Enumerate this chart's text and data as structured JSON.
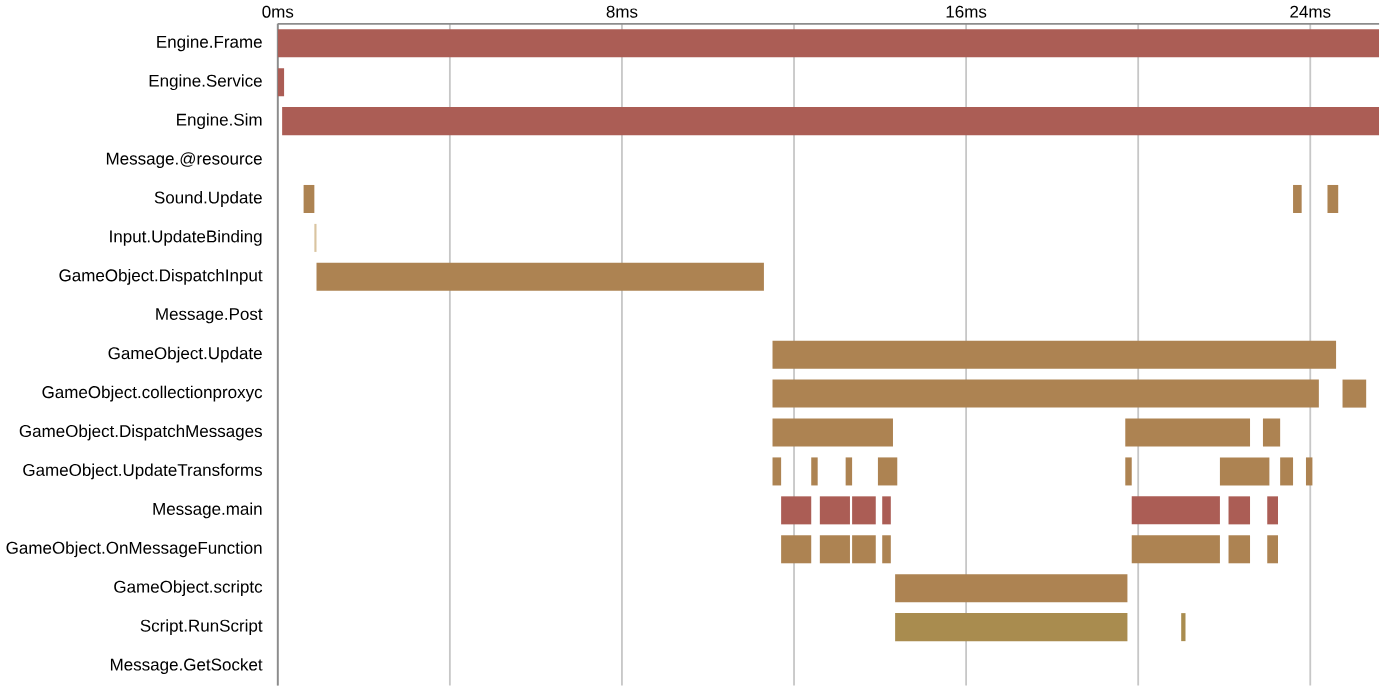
{
  "chart_data": {
    "type": "bar",
    "orientation": "horizontal",
    "grid": "x",
    "categories": [
      "Engine.Frame",
      "Engine.Service",
      "Engine.Sim",
      "Message.@resource",
      "Sound.Update",
      "Input.UpdateBinding",
      "GameObject.DispatchInput",
      "Message.Post",
      "GameObject.Update",
      "GameObject.collectionproxyc",
      "GameObject.DispatchMessages",
      "GameObject.UpdateTransforms",
      "Message.main",
      "GameObject.OnMessageFunction",
      "GameObject.scriptc",
      "Script.RunScript",
      "Message.GetSocket"
    ],
    "xlim": [
      0,
      25.6
    ],
    "xticks": [
      {
        "value": 0,
        "label": "0ms"
      },
      {
        "value": 4,
        "label": null
      },
      {
        "value": 8,
        "label": "8ms"
      },
      {
        "value": 12,
        "label": null
      },
      {
        "value": 16,
        "label": "16ms"
      },
      {
        "value": 20,
        "label": null
      },
      {
        "value": 24,
        "label": "24ms"
      }
    ],
    "series": [
      {
        "base": [
          0,
          0,
          0.1,
          null,
          0.6,
          0.85,
          0.9,
          null,
          11.5,
          11.5,
          11.5,
          11.5,
          11.7,
          11.7,
          14.35,
          14.35,
          null
        ],
        "values": [
          25.6,
          0.15,
          25.5,
          null,
          0.25,
          0.05,
          10.4,
          null,
          13.1,
          12.7,
          2.8,
          0.2,
          0.7,
          0.7,
          5.4,
          5.4,
          null
        ],
        "colors": [
          "#ab5d55",
          "#ab5d55",
          "#ab5d55",
          null,
          "#ad8352",
          "#d9c4a0",
          "#ad8352",
          null,
          "#ad8352",
          "#ad8352",
          "#ad8352",
          "#ad8352",
          "#ab5d55",
          "#ad8352",
          "#ad8352",
          "#a98c4f",
          null
        ]
      },
      {
        "base": [
          null,
          null,
          null,
          null,
          23.6,
          null,
          null,
          null,
          null,
          24.75,
          19.7,
          12.4,
          12.6,
          12.6,
          null,
          21.0,
          null
        ],
        "values": [
          null,
          null,
          null,
          null,
          0.2,
          null,
          null,
          null,
          null,
          0.55,
          2.9,
          0.15,
          0.7,
          0.7,
          null,
          0.1,
          null
        ],
        "colors": [
          null,
          null,
          null,
          null,
          "#ad8352",
          null,
          null,
          null,
          null,
          "#ad8352",
          "#ad8352",
          "#ad8352",
          "#ab5d55",
          "#ad8352",
          null,
          "#a98c4f",
          null
        ]
      },
      {
        "base": [
          null,
          null,
          null,
          null,
          24.4,
          null,
          null,
          null,
          null,
          null,
          22.9,
          13.2,
          13.35,
          13.35,
          null,
          null,
          null
        ],
        "values": [
          null,
          null,
          null,
          null,
          0.25,
          null,
          null,
          null,
          null,
          null,
          0.4,
          0.15,
          0.55,
          0.55,
          null,
          null,
          null
        ],
        "colors": [
          null,
          null,
          null,
          null,
          "#ad8352",
          null,
          null,
          null,
          null,
          null,
          "#ad8352",
          "#ad8352",
          "#ab5d55",
          "#ad8352",
          null,
          null,
          null
        ]
      },
      {
        "base": [
          null,
          null,
          null,
          null,
          null,
          null,
          null,
          null,
          null,
          null,
          null,
          13.95,
          14.05,
          14.05,
          null,
          null,
          null
        ],
        "values": [
          null,
          null,
          null,
          null,
          null,
          null,
          null,
          null,
          null,
          null,
          null,
          0.45,
          0.2,
          0.2,
          null,
          null,
          null
        ],
        "colors": [
          null,
          null,
          null,
          null,
          null,
          null,
          null,
          null,
          null,
          null,
          null,
          "#ad8352",
          "#ab5d55",
          "#ad8352",
          null,
          null,
          null
        ]
      },
      {
        "base": [
          null,
          null,
          null,
          null,
          null,
          null,
          null,
          null,
          null,
          null,
          null,
          19.7,
          19.85,
          19.85,
          null,
          null,
          null
        ],
        "values": [
          null,
          null,
          null,
          null,
          null,
          null,
          null,
          null,
          null,
          null,
          null,
          0.15,
          2.05,
          2.05,
          null,
          null,
          null
        ],
        "colors": [
          null,
          null,
          null,
          null,
          null,
          null,
          null,
          null,
          null,
          null,
          null,
          "#ad8352",
          "#ab5d55",
          "#ad8352",
          null,
          null,
          null
        ]
      },
      {
        "base": [
          null,
          null,
          null,
          null,
          null,
          null,
          null,
          null,
          null,
          null,
          null,
          21.9,
          22.1,
          22.1,
          null,
          null,
          null
        ],
        "values": [
          null,
          null,
          null,
          null,
          null,
          null,
          null,
          null,
          null,
          null,
          null,
          1.15,
          0.5,
          0.5,
          null,
          null,
          null
        ],
        "colors": [
          null,
          null,
          null,
          null,
          null,
          null,
          null,
          null,
          null,
          null,
          null,
          "#ad8352",
          "#ab5d55",
          "#ad8352",
          null,
          null,
          null
        ]
      },
      {
        "base": [
          null,
          null,
          null,
          null,
          null,
          null,
          null,
          null,
          null,
          null,
          null,
          23.3,
          23.0,
          23.0,
          null,
          null,
          null
        ],
        "values": [
          null,
          null,
          null,
          null,
          null,
          null,
          null,
          null,
          null,
          null,
          null,
          0.3,
          0.25,
          0.25,
          null,
          null,
          null
        ],
        "colors": [
          null,
          null,
          null,
          null,
          null,
          null,
          null,
          null,
          null,
          null,
          null,
          "#ad8352",
          "#ab5d55",
          "#ad8352",
          null,
          null,
          null
        ]
      },
      {
        "base": [
          null,
          null,
          null,
          null,
          null,
          null,
          null,
          null,
          null,
          null,
          null,
          23.9,
          null,
          null,
          null,
          null,
          null
        ],
        "values": [
          null,
          null,
          null,
          null,
          null,
          null,
          null,
          null,
          null,
          null,
          null,
          0.15,
          null,
          null,
          null,
          null,
          null
        ],
        "colors": [
          null,
          null,
          null,
          null,
          null,
          null,
          null,
          null,
          null,
          null,
          null,
          "#ad8352",
          null,
          null,
          null,
          null,
          null
        ]
      }
    ]
  }
}
